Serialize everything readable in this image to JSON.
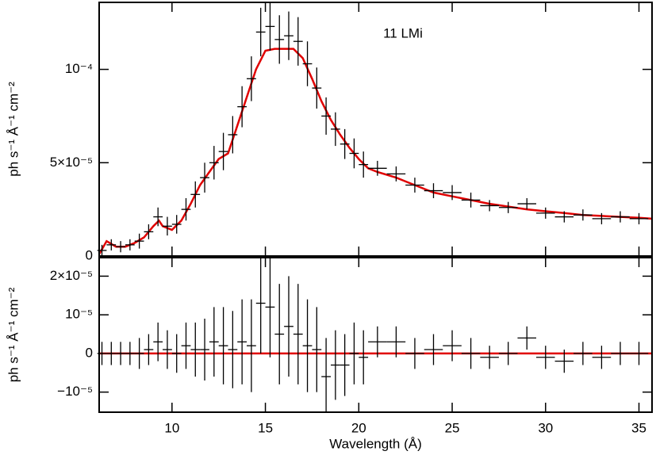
{
  "chart_data": [
    {
      "type": "errorbar",
      "annotation": "11 LMi",
      "ylabel": "ph s⁻¹ Å⁻¹ cm⁻²",
      "color": "#000000",
      "xlim": [
        6.1,
        35.7
      ],
      "ylim": [
        0,
        0.0001359
      ],
      "yticks": [
        0,
        {
          "value": 5e-05,
          "label": "5×10⁻⁵"
        },
        {
          "value": 0.0001,
          "label": "10⁻⁴"
        }
      ],
      "x": [
        6.25,
        6.75,
        7.25,
        7.75,
        8.25,
        8.75,
        9.25,
        9.75,
        10.25,
        10.75,
        11.25,
        11.75,
        12.25,
        12.75,
        13.25,
        13.75,
        14.25,
        14.75,
        15.25,
        15.75,
        16.25,
        16.75,
        17.25,
        17.75,
        18.25,
        18.75,
        19.25,
        19.75,
        20.25,
        21,
        22,
        23,
        24,
        25,
        26,
        27,
        28,
        29,
        30,
        31,
        32,
        33,
        34,
        35
      ],
      "xerrors": [
        0.25,
        0.25,
        0.25,
        0.25,
        0.25,
        0.25,
        0.25,
        0.25,
        0.25,
        0.25,
        0.25,
        0.25,
        0.25,
        0.25,
        0.25,
        0.25,
        0.25,
        0.25,
        0.25,
        0.25,
        0.25,
        0.25,
        0.25,
        0.25,
        0.25,
        0.25,
        0.25,
        0.25,
        0.25,
        0.5,
        0.5,
        0.5,
        0.5,
        0.5,
        0.5,
        0.5,
        0.5,
        0.5,
        0.5,
        0.5,
        0.5,
        0.5,
        0.5,
        0.5
      ],
      "values": [
        3e-06,
        6e-06,
        5e-06,
        6e-06,
        8e-06,
        1.3e-05,
        2.1e-05,
        1.6e-05,
        1.7e-05,
        2.5e-05,
        3.3e-05,
        4.2e-05,
        5e-05,
        5.6e-05,
        6.5e-05,
        8e-05,
        9.5e-05,
        0.00012,
        0.000123,
        0.000116,
        0.000118,
        0.000115,
        0.000103,
        9e-05,
        7.5e-05,
        6.8e-05,
        6e-05,
        5.5e-05,
        4.9e-05,
        4.7e-05,
        4.4e-05,
        3.8e-05,
        3.5e-05,
        3.4e-05,
        3e-05,
        2.7e-05,
        2.6e-05,
        2.8e-05,
        2.3e-05,
        2.1e-05,
        2.2e-05,
        2e-05,
        2.1e-05,
        2e-05
      ],
      "errors": [
        3e-06,
        3e-06,
        3e-06,
        3e-06,
        4e-06,
        4e-06,
        5e-06,
        5e-06,
        5e-06,
        6e-06,
        7e-06,
        8e-06,
        9e-06,
        1e-05,
        1e-05,
        1.1e-05,
        1.2e-05,
        1.3e-05,
        1.3e-05,
        1.3e-05,
        1.3e-05,
        1.3e-05,
        1.2e-05,
        1.1e-05,
        1e-05,
        9e-06,
        8e-06,
        8e-06,
        7e-06,
        4e-06,
        4e-06,
        4e-06,
        4e-06,
        4e-06,
        4e-06,
        3e-06,
        3e-06,
        3e-06,
        3e-06,
        3e-06,
        3e-06,
        3e-06,
        3e-06,
        3e-06
      ],
      "model": {
        "color": "#e00000",
        "x": [
          6.1,
          6.5,
          7,
          7.5,
          8,
          8.5,
          9,
          9.3,
          9.5,
          10,
          10.5,
          11,
          11.5,
          12,
          12.5,
          13,
          13.5,
          14,
          14.5,
          15,
          15.5,
          16,
          16.5,
          17,
          17.5,
          18,
          18.5,
          19,
          19.5,
          20,
          20.5,
          21,
          22,
          23,
          24,
          25,
          26,
          27,
          28,
          29,
          30,
          31,
          32,
          33,
          34,
          35,
          35.7
        ],
        "values": [
          1e-06,
          8e-06,
          5e-06,
          5e-06,
          7e-06,
          1e-05,
          1.6e-05,
          1.9e-05,
          1.6e-05,
          1.4e-05,
          1.9e-05,
          2.8e-05,
          3.8e-05,
          4.5e-05,
          5.2e-05,
          5.5e-05,
          7e-05,
          8.5e-05,
          0.0001,
          0.00011,
          0.000111,
          0.000111,
          0.000111,
          0.000106,
          9.5e-05,
          8.3e-05,
          7.3e-05,
          6.5e-05,
          5.8e-05,
          5.2e-05,
          4.7e-05,
          4.5e-05,
          4.2e-05,
          3.8e-05,
          3.4e-05,
          3.2e-05,
          3e-05,
          2.8e-05,
          2.65e-05,
          2.5e-05,
          2.4e-05,
          2.3e-05,
          2.2e-05,
          2.15e-05,
          2.1e-05,
          2.05e-05,
          2e-05
        ]
      }
    },
    {
      "type": "errorbar",
      "ylabel": "ph s⁻¹ Å⁻¹ cm⁻²",
      "xlabel": "Wavelength (Å)",
      "color": "#000000",
      "zero_line_color": "#e00000",
      "xlim": [
        6.1,
        35.7
      ],
      "xticks": [
        10,
        15,
        20,
        25,
        30,
        35
      ],
      "ylim": [
        -1.52e-05,
        2.48e-05
      ],
      "yticks": [
        {
          "value": -1e-05,
          "label": "−10⁻⁵"
        },
        0,
        {
          "value": 1e-05,
          "label": "10⁻⁵"
        },
        {
          "value": 2e-05,
          "label": "2×10⁻⁵"
        }
      ],
      "x": [
        6.25,
        6.75,
        7.25,
        7.75,
        8.25,
        8.75,
        9.25,
        9.75,
        10.25,
        10.75,
        11.25,
        11.75,
        12.25,
        12.75,
        13.25,
        13.75,
        14.25,
        14.75,
        15.25,
        15.75,
        16.25,
        16.75,
        17.25,
        17.75,
        18.25,
        18.75,
        19.25,
        19.75,
        20.25,
        21,
        22,
        23,
        24,
        25,
        26,
        27,
        28,
        29,
        30,
        31,
        32,
        33,
        34,
        35
      ],
      "xerrors": [
        0.25,
        0.25,
        0.25,
        0.25,
        0.25,
        0.25,
        0.25,
        0.25,
        0.25,
        0.25,
        0.25,
        0.25,
        0.25,
        0.25,
        0.25,
        0.25,
        0.25,
        0.25,
        0.25,
        0.25,
        0.25,
        0.25,
        0.25,
        0.25,
        0.25,
        0.25,
        0.25,
        0.25,
        0.25,
        0.5,
        0.5,
        0.5,
        0.5,
        0.5,
        0.5,
        0.5,
        0.5,
        0.5,
        0.5,
        0.5,
        0.5,
        0.5,
        0.5,
        0.5
      ],
      "values": [
        0,
        0,
        0,
        0,
        0,
        1e-06,
        3e-06,
        1e-06,
        0,
        2e-06,
        1e-06,
        1e-06,
        3e-06,
        2e-06,
        1e-06,
        3e-06,
        2e-06,
        1.3e-05,
        1.2e-05,
        5e-06,
        7e-06,
        5e-06,
        2e-06,
        1e-06,
        -6e-06,
        -3e-06,
        -3e-06,
        0,
        -1e-06,
        3e-06,
        3e-06,
        0,
        1e-06,
        2e-06,
        0,
        -1e-06,
        0,
        4e-06,
        -1e-06,
        -2e-06,
        0,
        -1e-06,
        0,
        0
      ],
      "errors": [
        3e-06,
        3e-06,
        3e-06,
        3e-06,
        4e-06,
        4e-06,
        5e-06,
        5e-06,
        5e-06,
        6e-06,
        7e-06,
        8e-06,
        9e-06,
        1e-05,
        1e-05,
        1.1e-05,
        1.2e-05,
        1.3e-05,
        1.3e-05,
        1.3e-05,
        1.3e-05,
        1.3e-05,
        1.2e-05,
        1.1e-05,
        1e-05,
        9e-06,
        8e-06,
        8e-06,
        7e-06,
        4e-06,
        4e-06,
        4e-06,
        4e-06,
        4e-06,
        4e-06,
        3e-06,
        3e-06,
        3e-06,
        3e-06,
        3e-06,
        3e-06,
        3e-06,
        3e-06,
        3e-06
      ]
    }
  ]
}
